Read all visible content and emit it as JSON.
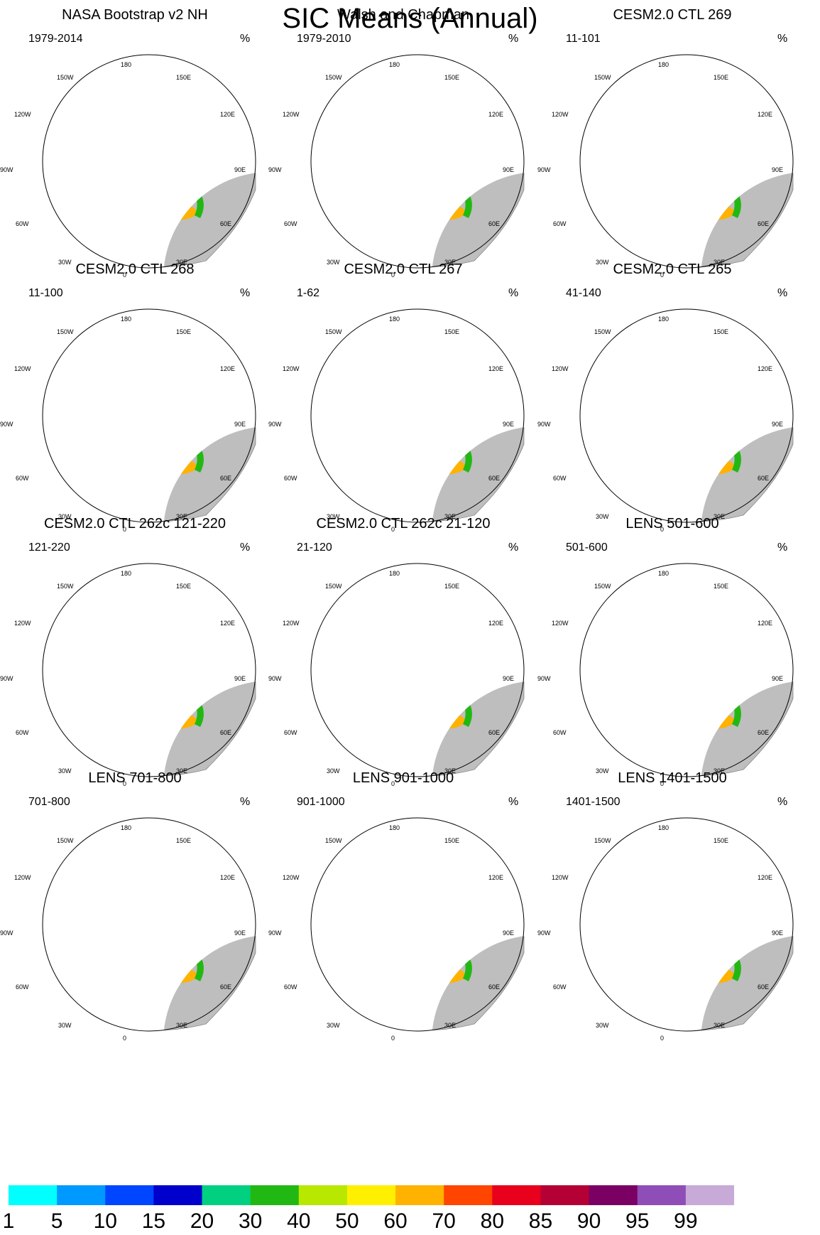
{
  "figure": {
    "title": "SIC Means (Annual)",
    "unit": "%"
  },
  "panels": [
    {
      "title": "NASA Bootstrap v2 NH",
      "period": "1979-2014",
      "variant": "obs1"
    },
    {
      "title": "Walsh and Chapman",
      "period": "1979-2010",
      "variant": "obs2"
    },
    {
      "title": "CESM2.0 CTL 269",
      "period": "11-101",
      "variant": "model"
    },
    {
      "title": "CESM2.0 CTL 268",
      "period": "11-100",
      "variant": "model"
    },
    {
      "title": "CESM2.0 CTL 267",
      "period": "1-62",
      "variant": "model"
    },
    {
      "title": "CESM2.0 CTL 265",
      "period": "41-140",
      "variant": "model"
    },
    {
      "title": "CESM2.0 CTL 262c 121-220",
      "period": "121-220",
      "variant": "model"
    },
    {
      "title": "CESM2.0 CTL 262c 21-120",
      "period": "21-120",
      "variant": "model"
    },
    {
      "title": "LENS 501-600",
      "period": "501-600",
      "variant": "lens"
    },
    {
      "title": "LENS 701-800",
      "period": "701-800",
      "variant": "lens"
    },
    {
      "title": "LENS 901-1000",
      "period": "901-1000",
      "variant": "lens"
    },
    {
      "title": "LENS 1401-1500",
      "period": "1401-1500",
      "variant": "lens"
    }
  ],
  "lon_labels": {
    "l180": "180",
    "l150e": "150E",
    "l120e": "120E",
    "l90e": "90E",
    "l60e": "60E",
    "l30e": "30E",
    "l0": "0",
    "l30w": "30W",
    "l60w": "60W",
    "l90w": "90W",
    "l120w": "120W",
    "l150w": "150W"
  },
  "colorbar": {
    "labels": [
      "1",
      "5",
      "10",
      "15",
      "20",
      "30",
      "40",
      "50",
      "60",
      "70",
      "80",
      "85",
      "90",
      "95",
      "99"
    ],
    "colors": [
      "#00ffff",
      "#0099ff",
      "#0045ff",
      "#0000cc",
      "#00d080",
      "#22b814",
      "#b8e800",
      "#ffef00",
      "#ffb200",
      "#ff4500",
      "#e8001c",
      "#b40034",
      "#7a0063",
      "#8f4db7",
      "#c7aad8"
    ]
  },
  "colors": {
    "land": "#bebebe",
    "ocean": "#ffffff",
    "border": "#000000"
  }
}
